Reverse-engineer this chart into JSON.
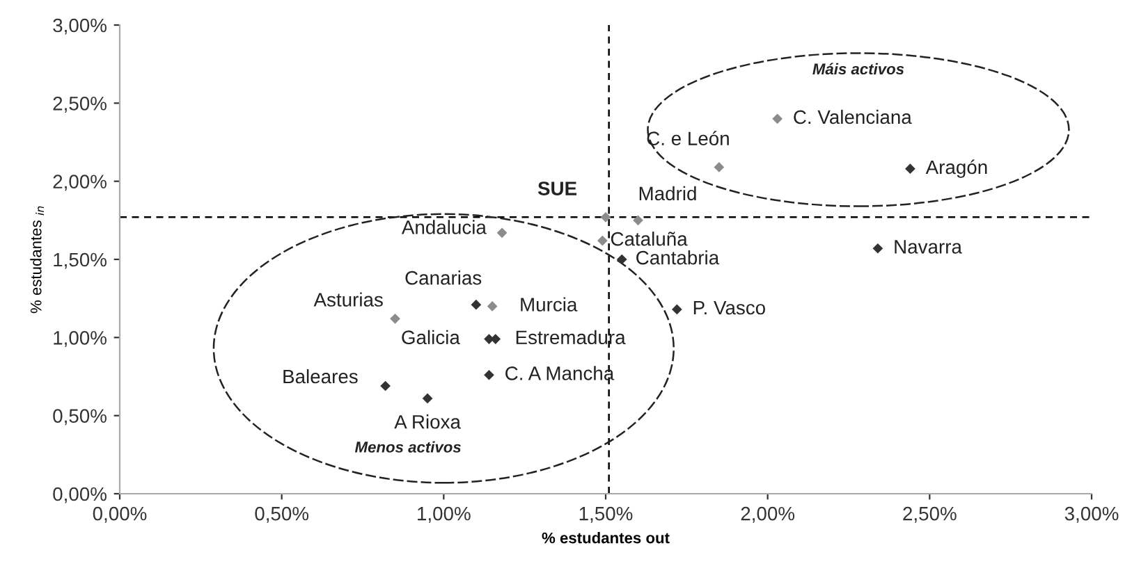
{
  "chart_data": {
    "type": "scatter",
    "xlabel": "% estudantes out",
    "ylabel": "% estudantes $_{in}$",
    "xlim": [
      0,
      3
    ],
    "ylim": [
      0,
      3
    ],
    "xticks": [
      {
        "value": 0,
        "label": "0,00%"
      },
      {
        "value": 0.5,
        "label": "0,50%"
      },
      {
        "value": 1,
        "label": "1,00%"
      },
      {
        "value": 1.5,
        "label": "1,50%"
      },
      {
        "value": 2,
        "label": "2,00%"
      },
      {
        "value": 2.5,
        "label": "2,50%"
      },
      {
        "value": 3,
        "label": "3,00%"
      }
    ],
    "yticks": [
      {
        "value": 0,
        "label": "0,00%"
      },
      {
        "value": 0.5,
        "label": "0,50%"
      },
      {
        "value": 1,
        "label": "1,00%"
      },
      {
        "value": 1.5,
        "label": "1,50%"
      },
      {
        "value": 2,
        "label": "2,00%"
      },
      {
        "value": 2.5,
        "label": "2,50%"
      },
      {
        "value": 3,
        "label": "3,00%"
      }
    ],
    "marker": "diamond",
    "grid": false,
    "series": [
      {
        "name": "SUE",
        "color": "#8c8c8c",
        "x": [
          1.5
        ],
        "values": [
          1.77
        ]
      },
      {
        "x": [
          1.6,
          1.18,
          1.49,
          1.55,
          1.1,
          1.15,
          0.85,
          1.14,
          1.16,
          1.14,
          0.82,
          0.95,
          1.72,
          2.03,
          1.85,
          2.44,
          2.34
        ],
        "values": [
          1.75,
          1.67,
          1.62,
          1.5,
          1.21,
          1.2,
          1.12,
          0.99,
          0.99,
          0.76,
          0.69,
          0.61,
          1.18,
          2.4,
          2.09,
          2.08,
          1.57
        ],
        "colors": [
          "#8c8c8c",
          "#8c8c8c",
          "#8c8c8c",
          "#333333",
          "#333333",
          "#8c8c8c",
          "#8c8c8c",
          "#333333",
          "#333333",
          "#333333",
          "#333333",
          "#333333",
          "#333333",
          "#8c8c8c",
          "#8c8c8c",
          "#333333",
          "#333333"
        ]
      }
    ],
    "ref_lines": [
      {
        "axis": "x",
        "value": 1.51,
        "line_style": "dashed",
        "color": "#000000"
      },
      {
        "axis": "y",
        "value": 1.77,
        "line_style": "dashed",
        "color": "#000000"
      }
    ],
    "annotations": [
      {
        "text": "Madrid",
        "x": 1.6,
        "y": 1.75
      },
      {
        "text": "Andalucia",
        "x": 1.18,
        "y": 1.67
      },
      {
        "text": "Cataluña",
        "x": 1.49,
        "y": 1.62
      },
      {
        "text": "Cantabria",
        "x": 1.55,
        "y": 1.5
      },
      {
        "text": "Canarias",
        "x": 1.1,
        "y": 1.21
      },
      {
        "text": "Murcia",
        "x": 1.15,
        "y": 1.2
      },
      {
        "text": "Asturias",
        "x": 0.85,
        "y": 1.12
      },
      {
        "text": "Galicia",
        "x": 1.14,
        "y": 0.99
      },
      {
        "text": "Estremadura",
        "x": 1.16,
        "y": 0.99
      },
      {
        "text": "C. A Mancha",
        "x": 1.14,
        "y": 0.76
      },
      {
        "text": "Baleares",
        "x": 0.82,
        "y": 0.69
      },
      {
        "text": "A Rioxa",
        "x": 0.95,
        "y": 0.61
      },
      {
        "text": "P. Vasco",
        "x": 1.72,
        "y": 1.18
      },
      {
        "text": "C. Valenciana",
        "x": 2.03,
        "y": 2.4
      },
      {
        "text": "C. e León",
        "x": 1.85,
        "y": 2.09
      },
      {
        "text": "Aragón",
        "x": 2.44,
        "y": 2.08
      },
      {
        "text": "Navarra",
        "x": 2.34,
        "y": 1.57
      },
      "Máis activos",
      "Menos activos"
    ]
  }
}
